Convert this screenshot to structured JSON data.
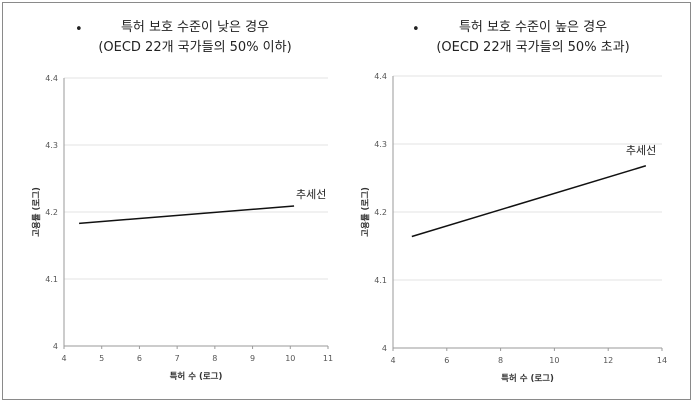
{
  "chart_data": [
    {
      "type": "line",
      "title_lines": [
        "특허 보호 수준이 낮은 경우",
        "(OECD 22개 국가들의 50% 이하)"
      ],
      "bullet": "•",
      "xlabel": "특허 수 (로그)",
      "ylabel": "고용률 (로그)",
      "xlim": [
        4,
        11
      ],
      "ylim": [
        4,
        4.4
      ],
      "xticks": [
        "4",
        "5",
        "6",
        "7",
        "8",
        "9",
        "10",
        "11"
      ],
      "yticks": [
        "4",
        "4.1",
        "4.2",
        "4.3",
        "4.4"
      ],
      "grid": true,
      "series": [
        {
          "name": "추세선",
          "points": [
            [
              4.4,
              4.183
            ],
            [
              10.1,
              4.209
            ]
          ]
        }
      ]
    },
    {
      "type": "line",
      "title_lines": [
        "특허 보호 수준이 높은 경우",
        "(OECD 22개 국가들의 50% 초과)"
      ],
      "bullet": "•",
      "xlabel": "특허 수 (로그)",
      "ylabel": "고용률 (로그)",
      "xlim": [
        4,
        14
      ],
      "ylim": [
        4,
        4.4
      ],
      "xticks": [
        "4",
        "6",
        "8",
        "10",
        "12",
        "14"
      ],
      "yticks": [
        "4",
        "4.1",
        "4.2",
        "4.3",
        "4.4"
      ],
      "grid": true,
      "series": [
        {
          "name": "추세선",
          "points": [
            [
              4.7,
              4.164
            ],
            [
              13.4,
              4.268
            ]
          ]
        }
      ]
    }
  ]
}
